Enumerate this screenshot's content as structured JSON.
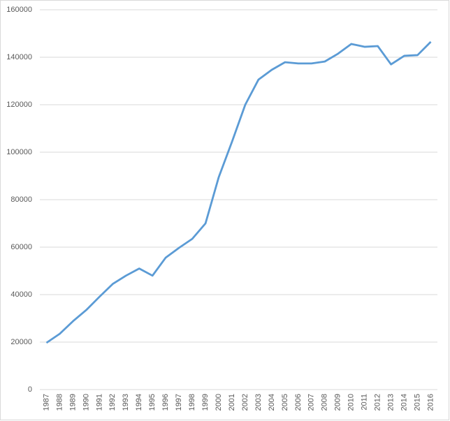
{
  "chart_data": {
    "type": "line",
    "categories": [
      "1987",
      "1988",
      "1989",
      "1990",
      "1991",
      "1992",
      "1993",
      "1994",
      "1995",
      "1996",
      "1997",
      "1998",
      "1999",
      "2000",
      "2001",
      "2002",
      "2003",
      "2004",
      "2005",
      "2006",
      "2007",
      "2008",
      "2009",
      "2010",
      "2011",
      "2012",
      "2013",
      "2014",
      "2015",
      "2016"
    ],
    "values": [
      19700,
      23500,
      28800,
      33500,
      39100,
      44500,
      48000,
      51000,
      48000,
      55600,
      59700,
      63500,
      70000,
      89500,
      104400,
      120000,
      130600,
      134700,
      137900,
      137400,
      137400,
      138200,
      141500,
      145600,
      144400,
      144700,
      137000,
      140600,
      140900,
      146500
    ],
    "color": "#5b9bd5",
    "ylim": [
      0,
      160000
    ],
    "yticks": [
      0,
      20000,
      40000,
      60000,
      80000,
      100000,
      120000,
      140000,
      160000
    ],
    "grid": true
  }
}
